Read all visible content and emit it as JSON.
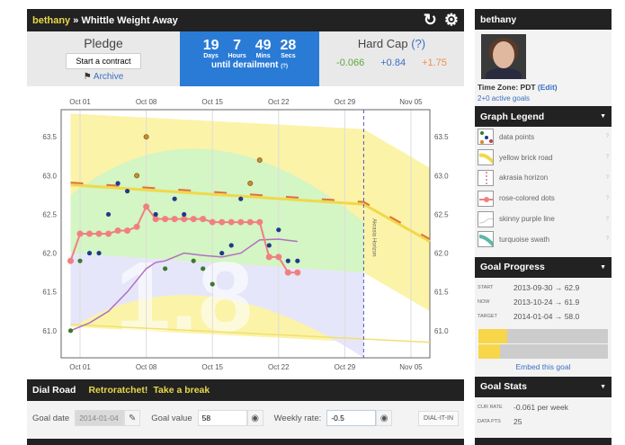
{
  "header": {
    "user": "bethany",
    "separator": "»",
    "goal_title": "Whittle Weight Away",
    "refresh_icon": "refresh-icon",
    "settings_icon": "gear-icon"
  },
  "pledge": {
    "title": "Pledge",
    "button": "Start a contract",
    "archive": "Archive"
  },
  "countdown": {
    "days": "19",
    "days_label": "Days",
    "hours": "7",
    "hours_label": "Hours",
    "mins": "49",
    "mins_label": "Mins",
    "secs": "28",
    "secs_label": "Secs",
    "caption": "until derailment",
    "help": "(?)"
  },
  "hardcap": {
    "title": "Hard Cap",
    "help": "(?)",
    "values": [
      "-0.066",
      "+0.84",
      "+1.75"
    ],
    "colors": [
      "#5aaa3a",
      "#3a6fc4",
      "#f0904a"
    ]
  },
  "dial": {
    "title": "Dial Road",
    "links": [
      "Retroratchet!",
      "Take a break"
    ],
    "goal_date_label": "Goal date",
    "goal_date": "2014-01-04",
    "goal_value_label": "Goal value",
    "goal_value": "58",
    "weekly_rate_label": "Weekly rate:",
    "weekly_rate": "-0.5",
    "button": "DIAL-IT-IN"
  },
  "sidebar": {
    "username": "bethany",
    "timezone_label": "Time Zone: PDT",
    "timezone_edit": "(Edit)",
    "active_goals": "2+0 active goals",
    "legend": {
      "title": "Graph Legend",
      "items": [
        "data points",
        "yellow brick road",
        "akrasia horizon",
        "rose-colored dots",
        "skinny purple line",
        "turquoise swath"
      ]
    },
    "progress": {
      "title": "Goal Progress",
      "rows": [
        {
          "k": "START",
          "v": "2013-09-30 → 62.9"
        },
        {
          "k": "NOW",
          "v": "2013-10-24 → 61.9"
        },
        {
          "k": "TARGET",
          "v": "2014-01-04 → 58.0"
        }
      ],
      "bar_fractions": [
        0.22,
        0.17
      ],
      "embed": "Embed this goal"
    },
    "stats": {
      "title": "Goal Stats",
      "rows": [
        {
          "k": "CUR RATE",
          "v": "-0.061 per week"
        },
        {
          "k": "DATA PTS",
          "v": "25"
        }
      ]
    }
  },
  "chart_data": {
    "type": "scatter",
    "x_ticks": [
      "Oct 01",
      "Oct 08",
      "Oct 15",
      "Oct 22",
      "Oct 29",
      "Nov 05"
    ],
    "y_ticks": [
      "61.0",
      "61.5",
      "62.0",
      "62.5",
      "63.0",
      "63.5"
    ],
    "xlim": [
      "2013-09-29",
      "2013-11-07"
    ],
    "ylim": [
      60.65,
      63.85
    ],
    "akrasia_horizon": {
      "date": "2013-10-31",
      "label": "Akrasia Horizon"
    },
    "watermark": "1.8",
    "data_points": [
      [
        "2013-09-30",
        61.0,
        "green"
      ],
      [
        "2013-10-01",
        61.9,
        "green"
      ],
      [
        "2013-10-02",
        62.0,
        "blue"
      ],
      [
        "2013-10-03",
        62.0,
        "blue"
      ],
      [
        "2013-10-04",
        62.5,
        "blue"
      ],
      [
        "2013-10-05",
        62.9,
        "blue"
      ],
      [
        "2013-10-06",
        62.8,
        "blue"
      ],
      [
        "2013-10-07",
        63.0,
        "orange"
      ],
      [
        "2013-10-08",
        63.5,
        "orange"
      ],
      [
        "2013-10-09",
        62.5,
        "blue"
      ],
      [
        "2013-10-10",
        61.8,
        "green"
      ],
      [
        "2013-10-11",
        62.7,
        "blue"
      ],
      [
        "2013-10-12",
        62.5,
        "blue"
      ],
      [
        "2013-10-13",
        61.9,
        "green"
      ],
      [
        "2013-10-14",
        61.8,
        "green"
      ],
      [
        "2013-10-15",
        61.6,
        "green"
      ],
      [
        "2013-10-16",
        62.0,
        "blue"
      ],
      [
        "2013-10-17",
        62.1,
        "blue"
      ],
      [
        "2013-10-18",
        62.7,
        "blue"
      ],
      [
        "2013-10-19",
        62.9,
        "orange"
      ],
      [
        "2013-10-20",
        63.2,
        "orange"
      ],
      [
        "2013-10-21",
        62.1,
        "blue"
      ],
      [
        "2013-10-22",
        62.3,
        "blue"
      ],
      [
        "2013-10-23",
        61.9,
        "blue"
      ],
      [
        "2013-10-24",
        61.9,
        "blue"
      ]
    ],
    "rose_dots": [
      61.9,
      62.25,
      62.25,
      62.25,
      62.25,
      62.29,
      62.29,
      62.34,
      62.6,
      62.44,
      62.44,
      62.44,
      62.44,
      62.44,
      62.44,
      62.4,
      62.4,
      62.4,
      62.4,
      62.4,
      62.4,
      61.95,
      61.95,
      61.75,
      61.75
    ],
    "purple_line": [
      [
        "2013-09-30",
        61.0
      ],
      [
        "2013-10-02",
        61.1
      ],
      [
        "2013-10-04",
        61.25
      ],
      [
        "2013-10-06",
        61.5
      ],
      [
        "2013-10-08",
        61.8
      ],
      [
        "2013-10-09",
        61.88
      ],
      [
        "2013-10-10",
        61.9
      ],
      [
        "2013-10-12",
        62.0
      ],
      [
        "2013-10-14",
        61.97
      ],
      [
        "2013-10-16",
        61.95
      ],
      [
        "2013-10-18",
        62.0
      ],
      [
        "2013-10-20",
        62.17
      ],
      [
        "2013-10-22",
        62.18
      ],
      [
        "2013-10-24",
        62.15
      ]
    ],
    "road": [
      [
        "2013-09-30",
        62.88
      ],
      [
        "2013-10-31",
        62.63
      ],
      [
        "2013-11-07",
        62.15
      ]
    ],
    "colors": {
      "blue": "#1f3a8a",
      "green": "#3a7a2a",
      "orange": "#d08a30",
      "rose": "#f08080",
      "purple": "#b070c0",
      "road": "#f0d84a",
      "dash": "#e07040"
    }
  }
}
